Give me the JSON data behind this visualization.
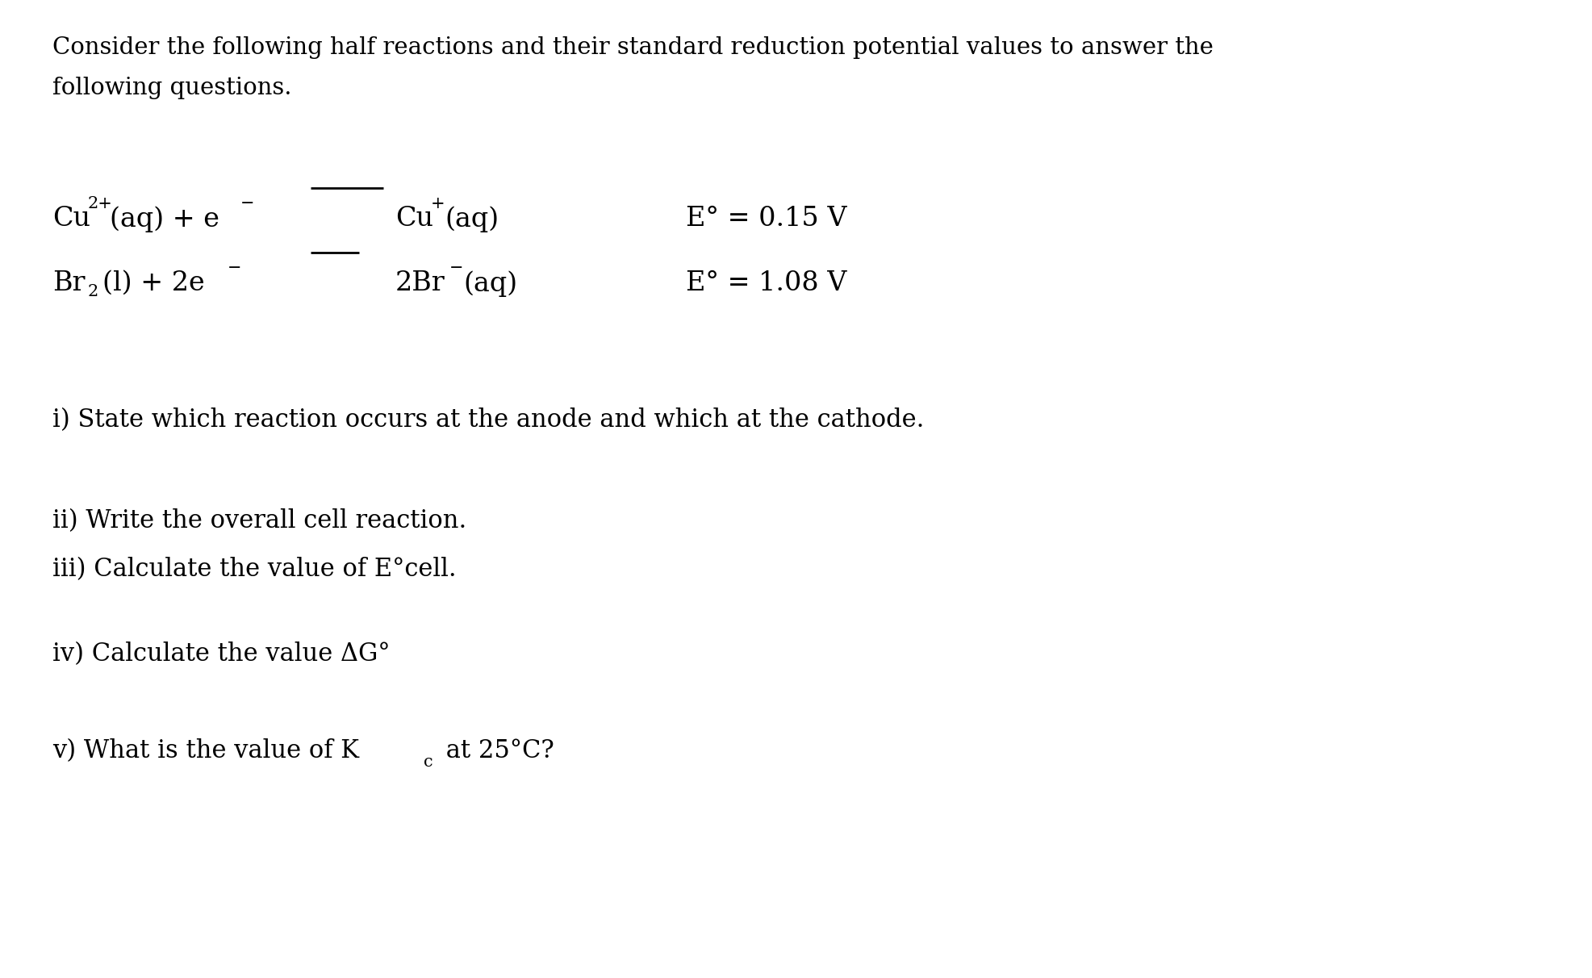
{
  "bg_color": "#ffffff",
  "text_color": "#000000",
  "figsize": [
    19.74,
    12.12
  ],
  "dpi": 100,
  "font_family": "DejaVu Serif",
  "intro_line1": "Consider the following half reactions and their standard reduction potential values to answer the",
  "intro_line2": "following questions.",
  "fs_intro": 21,
  "fs_rxn": 24,
  "fs_rxn_script": 15,
  "fs_q": 22,
  "rxn1_Evalue": "E° = 0.15 V",
  "rxn2_Evalue": "E° = 1.08 V",
  "q1": "i) State which reaction occurs at the anode and which at the cathode.",
  "q2": "ii) Write the overall cell reaction.",
  "q3": "iii) Calculate the value of E°cell.",
  "q4": "iv) Calculate the value ΔG°",
  "q5_pre": "v) What is the value of K",
  "q5_sub": "c",
  "q5_post": " at 25°C?"
}
